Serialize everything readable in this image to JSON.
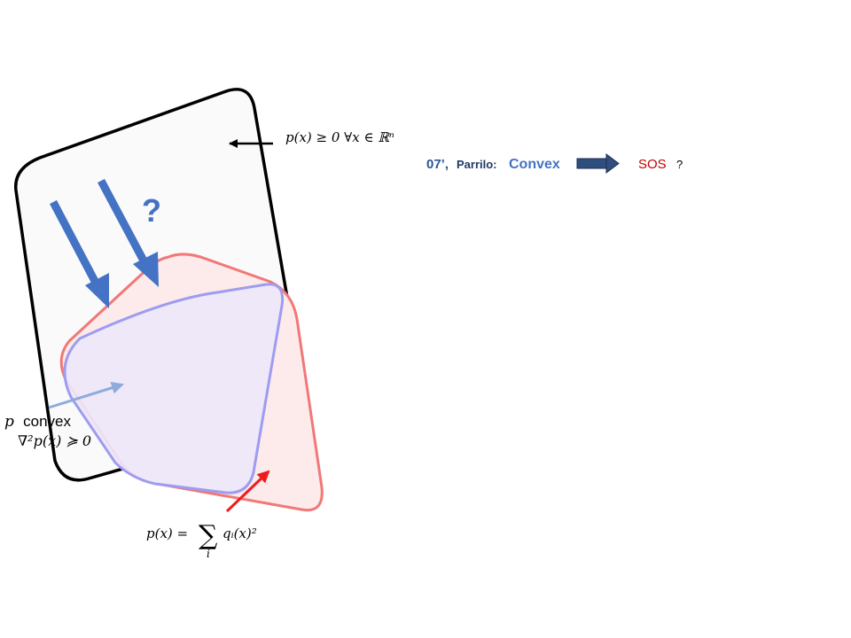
{
  "label_nonneg": "p(x) ≥ 0 ∀x ∈ ℝⁿ",
  "question_mark": "?",
  "label_convex_p": "p",
  "label_convex_word": "convex",
  "label_convex_hessian": "∇²p(x) ≽ 0",
  "label_sos_lhs": "p(x) =",
  "label_sos_sum": "∑",
  "label_sos_index": "i",
  "label_sos_rhs": "qᵢ(x)²",
  "headline": {
    "year": "07’,",
    "author": "Parrilo:",
    "from": "Convex",
    "to": "SOS",
    "suffix": "?"
  },
  "colors": {
    "outer_fill": "#fafafa",
    "outer_stroke": "#000000",
    "sos_fill": "#fdeaea",
    "sos_stroke": "#f07878",
    "convex_fill": "#ece8fb",
    "convex_stroke": "#9e9cf0",
    "blue_arrow": "#4472c4",
    "light_blue_arrow": "#8faadc",
    "red_arrow": "#ee1c1c",
    "dark_arrow": "#1f3864",
    "sos_text": "#c00000",
    "convex_text": "#4472c4",
    "year_text": "#2e5597"
  },
  "icons": {
    "headline_arrow": "right-arrow-icon"
  }
}
